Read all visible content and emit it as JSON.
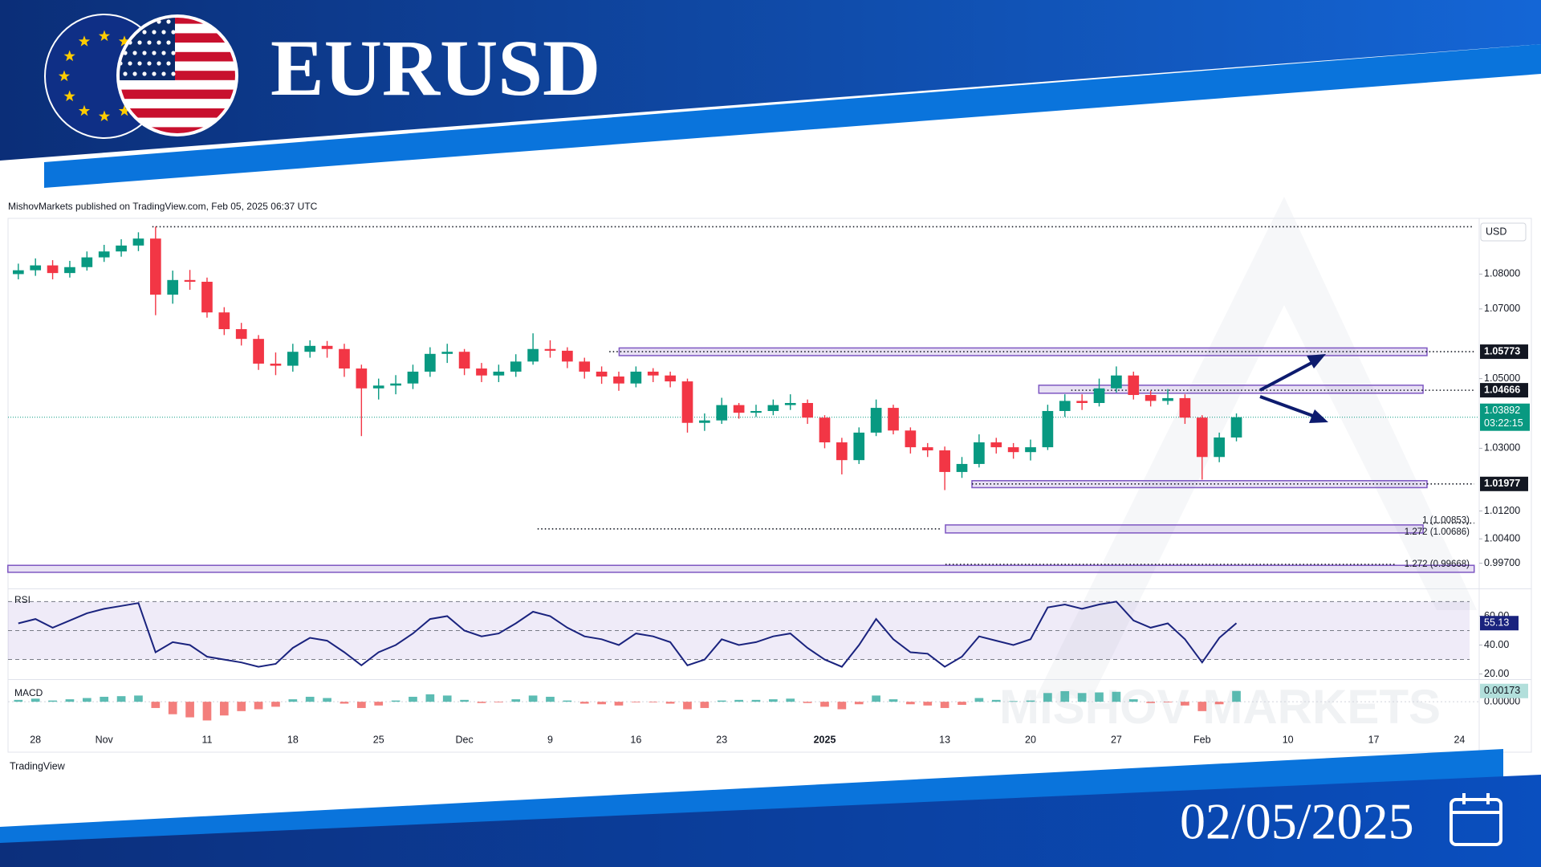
{
  "header": {
    "title": "EURUSD",
    "date": "02/05/2025"
  },
  "publisher": "MishovMarkets published on TradingView.com, Feb 05, 2025 06:37 UTC",
  "brand": "TradingView",
  "watermark": "MISHOV MARKETS",
  "chart_data": [
    {
      "type": "candlestick",
      "currency": "USD",
      "countdown": "03:22:15",
      "up_color": "#089981",
      "down_color": "#f23645",
      "grid": false,
      "categories": [
        null,
        "28",
        null,
        null,
        null,
        "Nov",
        null,
        null,
        null,
        null,
        null,
        "11",
        null,
        null,
        null,
        null,
        "18",
        null,
        null,
        null,
        null,
        "25",
        null,
        null,
        null,
        null,
        "Dec",
        null,
        null,
        null,
        null,
        "9",
        null,
        null,
        null,
        null,
        "16",
        null,
        null,
        null,
        null,
        "23",
        null,
        null,
        null,
        null,
        null,
        "2025",
        null,
        null,
        null,
        null,
        null,
        null,
        "13",
        null,
        null,
        null,
        null,
        "20",
        null,
        null,
        null,
        null,
        "27",
        null,
        null,
        null,
        null,
        "Feb",
        null,
        null,
        null,
        null,
        "10",
        null,
        null,
        null,
        null,
        "17",
        null,
        null,
        null,
        null,
        "24",
        null
      ],
      "open": [
        1.08,
        1.0811,
        1.0825,
        1.0803,
        1.082,
        1.0848,
        1.0865,
        1.0882,
        1.0902,
        1.0741,
        1.0783,
        1.0778,
        1.069,
        1.0642,
        1.0614,
        1.0543,
        1.0537,
        1.0577,
        1.0594,
        1.0585,
        1.0529,
        1.0472,
        1.048,
        1.0486,
        1.052,
        1.0571,
        1.0577,
        1.0529,
        1.0509,
        1.052,
        1.0549,
        1.0585,
        1.058,
        1.0549,
        1.052,
        1.0506,
        1.0486,
        1.052,
        1.0509,
        1.0492,
        1.0373,
        1.038,
        1.0424,
        1.0402,
        1.0407,
        1.0424,
        1.043,
        1.0388,
        1.0317,
        1.0266,
        1.0345,
        1.0416,
        1.0351,
        1.0303,
        1.0294,
        1.0232,
        1.0255,
        1.0317,
        1.0303,
        1.0289,
        1.0303,
        1.0407,
        1.0436,
        1.043,
        1.0472,
        1.0509,
        1.0453,
        1.0436,
        1.0444,
        1.0388,
        1.0275,
        1.0331,
        null,
        null,
        null,
        null,
        null,
        null,
        null,
        null,
        null,
        null,
        null,
        null,
        null,
        null
      ],
      "high": [
        1.083,
        1.0845,
        1.084,
        1.0838,
        1.0865,
        1.0884,
        1.09,
        1.092,
        1.0936,
        1.081,
        1.0812,
        1.079,
        1.0705,
        1.066,
        1.0625,
        1.0575,
        1.06,
        1.061,
        1.0608,
        1.06,
        1.054,
        1.05,
        1.051,
        1.054,
        1.059,
        1.06,
        1.0585,
        1.0545,
        1.054,
        1.057,
        1.063,
        1.061,
        1.059,
        1.056,
        1.0535,
        1.052,
        1.0535,
        1.053,
        1.052,
        1.05,
        1.04,
        1.0445,
        1.043,
        1.0425,
        1.044,
        1.0455,
        1.044,
        1.0395,
        1.033,
        1.036,
        1.044,
        1.0425,
        1.036,
        1.0315,
        1.0305,
        1.0275,
        1.034,
        1.033,
        1.0315,
        1.0325,
        1.0425,
        1.0455,
        1.0455,
        1.05,
        1.0535,
        1.052,
        1.0465,
        1.047,
        1.0455,
        1.0395,
        1.0345,
        1.04,
        null,
        null,
        null,
        null,
        null,
        null,
        null,
        null,
        null,
        null,
        null,
        null,
        null,
        null
      ],
      "low": [
        1.0785,
        1.0795,
        1.0785,
        1.079,
        1.081,
        1.0835,
        1.085,
        1.0866,
        1.0682,
        1.0715,
        1.0755,
        1.0675,
        1.0625,
        1.0595,
        1.0525,
        1.051,
        1.052,
        1.056,
        1.056,
        1.0505,
        1.0335,
        1.044,
        1.0455,
        1.047,
        1.0505,
        1.0545,
        1.051,
        1.049,
        1.049,
        1.0505,
        1.054,
        1.056,
        1.053,
        1.05,
        1.0485,
        1.0465,
        1.0475,
        1.049,
        1.0475,
        1.0345,
        1.035,
        1.037,
        1.0385,
        1.039,
        1.0395,
        1.041,
        1.037,
        1.03,
        1.0225,
        1.0255,
        1.0335,
        1.034,
        1.0285,
        1.0275,
        1.018,
        1.0215,
        1.0245,
        1.0285,
        1.027,
        1.0265,
        1.0295,
        1.039,
        1.041,
        1.042,
        1.046,
        1.044,
        1.042,
        1.0425,
        1.037,
        1.021,
        1.026,
        1.032,
        null,
        null,
        null,
        null,
        null,
        null,
        null,
        null,
        null,
        null,
        null,
        null,
        null,
        null
      ],
      "close": [
        1.0811,
        1.0825,
        1.0803,
        1.082,
        1.0848,
        1.0865,
        1.0882,
        1.0902,
        1.0741,
        1.0783,
        1.0778,
        1.069,
        1.0642,
        1.0614,
        1.0543,
        1.0537,
        1.0577,
        1.0594,
        1.0585,
        1.0529,
        1.0472,
        1.048,
        1.0486,
        1.052,
        1.0571,
        1.0577,
        1.0529,
        1.0509,
        1.052,
        1.0549,
        1.0585,
        1.058,
        1.0549,
        1.052,
        1.0506,
        1.0486,
        1.052,
        1.0509,
        1.0492,
        1.0373,
        1.038,
        1.0424,
        1.0402,
        1.0407,
        1.0424,
        1.043,
        1.0388,
        1.0317,
        1.0266,
        1.0345,
        1.0416,
        1.0351,
        1.0303,
        1.0294,
        1.0232,
        1.0255,
        1.0317,
        1.0303,
        1.0289,
        1.0303,
        1.0407,
        1.0436,
        1.043,
        1.0472,
        1.0509,
        1.0453,
        1.0436,
        1.0444,
        1.0388,
        1.0275,
        1.0331,
        1.03892,
        null,
        null,
        null,
        null,
        null,
        null,
        null,
        null,
        null,
        null,
        null,
        null,
        null,
        null
      ],
      "ylim": [
        0.99,
        1.096
      ],
      "yticks": [
        {
          "value": 1.08,
          "label": "1.08000"
        },
        {
          "value": 1.07,
          "label": "1.07000"
        },
        {
          "value": 1.05,
          "label": "1.05000"
        },
        {
          "value": 1.03,
          "label": "1.03000"
        },
        {
          "value": 1.012,
          "label": "1.01200"
        },
        {
          "value": 1.004,
          "label": "1.00400"
        },
        {
          "value": 0.997,
          "label": "0.99700"
        }
      ],
      "price_labels": [
        1.05773,
        1.04666,
        1.01977
      ],
      "zones": [
        {
          "low": 1.0566,
          "high": 1.0588
        },
        {
          "low": 1.0458,
          "high": 1.0481
        },
        {
          "low": 1.0187,
          "high": 1.0207
        },
        {
          "low": 1.0057,
          "high": 1.008
        },
        {
          "low": 0.9944,
          "high": 0.9964
        }
      ],
      "fib_levels": [
        {
          "value": 1.00853,
          "label": "1 (1.00853)"
        },
        {
          "value": 1.00686,
          "label": "1.272 (1.00686)"
        },
        {
          "value": 0.99668,
          "label": "1.272 (0.99668)"
        }
      ],
      "zone_color": "#7e57c2"
    },
    {
      "type": "line",
      "title": "RSI",
      "color": "#1a237e",
      "band_color": "#7e57c2",
      "values": [
        55,
        58,
        52,
        57,
        62,
        65,
        67,
        69,
        35,
        42,
        40,
        32,
        30,
        28,
        25,
        27,
        38,
        45,
        43,
        35,
        26,
        35,
        40,
        48,
        58,
        60,
        50,
        46,
        48,
        55,
        63,
        60,
        52,
        46,
        44,
        40,
        48,
        46,
        42,
        26,
        30,
        44,
        40,
        42,
        46,
        48,
        38,
        30,
        25,
        40,
        58,
        44,
        35,
        34,
        25,
        32,
        46,
        43,
        40,
        44,
        66,
        68,
        65,
        68,
        70,
        57,
        52,
        55,
        44,
        28,
        45,
        55.13,
        null,
        null,
        null,
        null,
        null,
        null,
        null,
        null,
        null,
        null,
        null,
        null,
        null,
        null
      ],
      "bands": [
        70,
        50,
        30
      ],
      "ylim": [
        17,
        78
      ],
      "yticks": [
        {
          "value": 60,
          "label": "60.00"
        },
        {
          "value": 40,
          "label": "40.00"
        },
        {
          "value": 20,
          "label": "20.00"
        }
      ]
    },
    {
      "type": "bar",
      "title": "MACD",
      "up_color": "#26a69a",
      "down_color": "#ef5350",
      "values": [
        0.0003,
        0.0005,
        0.0002,
        0.0004,
        0.0006,
        0.0008,
        0.0009,
        0.001,
        -0.001,
        -0.002,
        -0.0025,
        -0.003,
        -0.0022,
        -0.0015,
        -0.0012,
        -0.0008,
        0.0004,
        0.0008,
        0.0006,
        -0.0003,
        -0.001,
        -0.0006,
        0.0002,
        0.0008,
        0.0012,
        0.001,
        0.0003,
        -0.0002,
        -0.0001,
        0.0004,
        0.001,
        0.0008,
        0.0002,
        -0.0003,
        -0.0004,
        -0.0006,
        -0.0001,
        -0.0001,
        -0.0003,
        -0.0012,
        -0.001,
        0.0002,
        0.0003,
        0.0003,
        0.0004,
        0.0005,
        -0.0002,
        -0.0008,
        -0.0012,
        -0.0004,
        0.001,
        0.0004,
        -0.0004,
        -0.0006,
        -0.001,
        -0.0005,
        0.0006,
        0.0003,
        0.0001,
        0.0002,
        0.0014,
        0.0017,
        0.0014,
        0.0015,
        0.0016,
        0.0004,
        -0.0002,
        -0.0001,
        -0.0006,
        -0.0015,
        -0.0004,
        0.00173,
        null,
        null,
        null,
        null,
        null,
        null,
        null,
        null,
        null,
        null,
        null,
        null,
        null,
        null
      ],
      "ylim": [
        -0.0041,
        0.0035
      ],
      "yticks": [
        {
          "value": 0,
          "label": "0.00000"
        }
      ]
    }
  ]
}
